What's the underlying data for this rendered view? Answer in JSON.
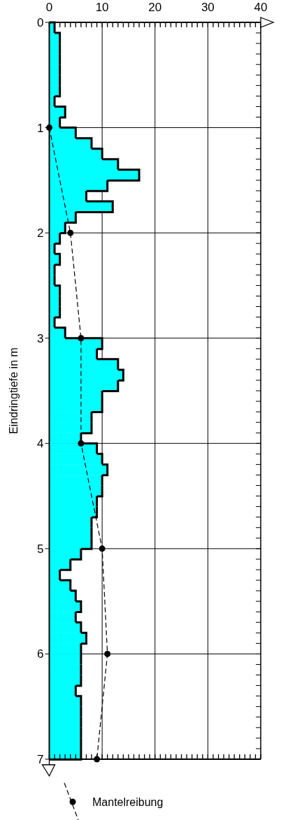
{
  "chart_data": {
    "type": "histogram",
    "orientation": "horizontal",
    "ylabel": "Eindringtiefe in m",
    "xlim": [
      0,
      40
    ],
    "xticks": [
      0,
      {
        "value": 1,
        "label": null
      },
      {
        "value": 2,
        "label": null
      },
      {
        "value": 3,
        "label": null
      },
      {
        "value": 4,
        "label": null
      },
      {
        "value": 5,
        "label": null
      },
      {
        "value": 6,
        "label": null
      },
      {
        "value": 7,
        "label": null
      },
      {
        "value": 8,
        "label": null
      },
      {
        "value": 9,
        "label": null
      },
      10,
      {
        "value": 11,
        "label": null
      },
      {
        "value": 12,
        "label": null
      },
      {
        "value": 13,
        "label": null
      },
      {
        "value": 14,
        "label": null
      },
      {
        "value": 15,
        "label": null
      },
      {
        "value": 16,
        "label": null
      },
      {
        "value": 17,
        "label": null
      },
      {
        "value": 18,
        "label": null
      },
      {
        "value": 19,
        "label": null
      },
      20,
      {
        "value": 21,
        "label": null
      },
      {
        "value": 22,
        "label": null
      },
      {
        "value": 23,
        "label": null
      },
      {
        "value": 24,
        "label": null
      },
      {
        "value": 25,
        "label": null
      },
      {
        "value": 26,
        "label": null
      },
      {
        "value": 27,
        "label": null
      },
      {
        "value": 28,
        "label": null
      },
      {
        "value": 29,
        "label": null
      },
      30,
      {
        "value": 31,
        "label": null
      },
      {
        "value": 32,
        "label": null
      },
      {
        "value": 33,
        "label": null
      },
      {
        "value": 34,
        "label": null
      },
      {
        "value": 35,
        "label": null
      },
      {
        "value": 36,
        "label": null
      },
      {
        "value": 37,
        "label": null
      },
      {
        "value": 38,
        "label": null
      },
      {
        "value": 39,
        "label": null
      },
      40
    ],
    "ylim": [
      7,
      0
    ],
    "yticks": [
      0,
      1,
      2,
      3,
      4,
      5,
      6,
      7
    ],
    "grid": true,
    "legend": "bottom",
    "bins": [
      0,
      0.1,
      0.2,
      0.3,
      0.4,
      0.5,
      0.6,
      0.7,
      0.8,
      0.9,
      1,
      1.1,
      1.2,
      1.3,
      1.4,
      1.5,
      1.6,
      1.7,
      1.8,
      1.9,
      2,
      2.1,
      2.2,
      2.3,
      2.4,
      2.5,
      2.6,
      2.7,
      2.8,
      2.9,
      3,
      3.1,
      3.2,
      3.3,
      3.4,
      3.5,
      3.6,
      3.7,
      3.8,
      3.9,
      4,
      4.1,
      4.2,
      4.3,
      4.4,
      4.5,
      4.6,
      4.7,
      4.8,
      4.9,
      5,
      5.1,
      5.2,
      5.3,
      5.4,
      5.5,
      5.6,
      5.7,
      5.8,
      5.9,
      6,
      6.1,
      6.2,
      6.3,
      6.4,
      6.5,
      6.6,
      6.7,
      6.8,
      6.9,
      7
    ],
    "series": [
      {
        "type": "histogram",
        "color": "#00ffff",
        "values": [
          1,
          2,
          2,
          2,
          2,
          2,
          2,
          1,
          3,
          2,
          5,
          8,
          10,
          13,
          17,
          11,
          7,
          12,
          5,
          3,
          2,
          1,
          2,
          1,
          1,
          2,
          2,
          2,
          1,
          3,
          10,
          9,
          13,
          14,
          13,
          10,
          10,
          8,
          8,
          6,
          9,
          10,
          11,
          10,
          10,
          9,
          9,
          8,
          8,
          8,
          6,
          4,
          2,
          4,
          5,
          6,
          5,
          6,
          7,
          6,
          6,
          6,
          6,
          5,
          6,
          6,
          6,
          6,
          6,
          6
        ]
      },
      {
        "type": "line",
        "name": "Mantelreibung",
        "color": "#000000",
        "marker": "circle",
        "line_style": "dashed",
        "x": [
          1,
          2,
          3,
          4,
          5,
          6,
          7
        ],
        "values": [
          0,
          4,
          6,
          6,
          10,
          11,
          9
        ]
      }
    ]
  }
}
